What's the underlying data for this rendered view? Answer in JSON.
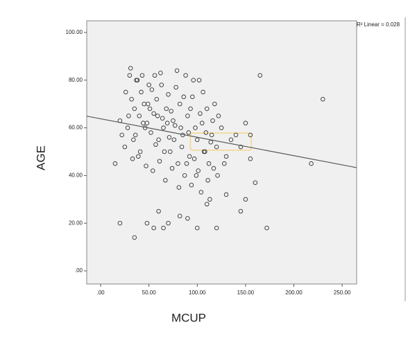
{
  "chart_data": {
    "type": "scatter",
    "x_label": "MCUP",
    "y_label": "AGE",
    "annotation": "R² Linear = 0.028",
    "xlim": [
      -14.4,
      265
    ],
    "ylim": [
      -5.5,
      104.9
    ],
    "xticks": [
      {
        "value": 0,
        "label": ".00"
      },
      {
        "value": 50,
        "label": "50.00"
      },
      {
        "value": 100,
        "label": "100.00"
      },
      {
        "value": 150,
        "label": "150.00"
      },
      {
        "value": 200,
        "label": "200.00"
      },
      {
        "value": 250,
        "label": "250.00"
      }
    ],
    "yticks": [
      {
        "value": 0,
        "label": ".00"
      },
      {
        "value": 20,
        "label": "20.00"
      },
      {
        "value": 40,
        "label": "40.00"
      },
      {
        "value": 60,
        "label": "60.00"
      },
      {
        "value": 80,
        "label": "80.00"
      },
      {
        "value": 100,
        "label": "100.00"
      }
    ],
    "color": "#333333",
    "background": "#f0f0f0",
    "x": [
      30,
      32,
      35,
      38,
      40,
      42,
      45,
      48,
      50,
      52,
      55,
      58,
      60,
      62,
      65,
      68,
      70,
      72,
      75,
      78,
      80,
      82,
      85,
      88,
      90,
      92,
      95,
      98,
      100,
      102,
      105,
      108,
      110,
      112,
      115,
      118,
      120,
      25,
      28,
      33,
      36,
      41,
      44,
      47,
      51,
      54,
      57,
      61,
      64,
      67,
      71,
      74,
      77,
      81,
      84,
      87,
      91,
      94,
      97,
      101,
      104,
      107,
      111,
      114,
      117,
      121,
      125,
      130,
      135,
      140,
      20,
      22,
      26,
      29,
      31,
      34,
      37,
      39,
      43,
      46,
      49,
      53,
      56,
      59,
      63,
      66,
      69,
      73,
      76,
      79,
      83,
      86,
      89,
      93,
      96,
      99,
      103,
      106,
      109,
      113,
      116,
      122,
      128,
      230,
      218,
      172,
      165,
      20,
      35,
      100,
      120,
      145,
      160,
      155,
      150,
      15,
      65,
      70,
      55,
      48,
      90,
      110,
      130,
      145,
      150,
      155,
      82,
      60
    ],
    "y": [
      82,
      72,
      68,
      80,
      65,
      75,
      70,
      62,
      78,
      58,
      66,
      72,
      55,
      83,
      60,
      68,
      74,
      50,
      63,
      77,
      45,
      70,
      57,
      82,
      65,
      48,
      73,
      60,
      55,
      80,
      62,
      50,
      68,
      45,
      57,
      70,
      52,
      52,
      60,
      47,
      57,
      50,
      62,
      44,
      68,
      42,
      53,
      46,
      64,
      38,
      56,
      43,
      61,
      35,
      52,
      40,
      58,
      36,
      47,
      42,
      33,
      50,
      38,
      54,
      43,
      40,
      60,
      48,
      55,
      57,
      63,
      57,
      75,
      65,
      85,
      55,
      80,
      48,
      82,
      60,
      70,
      76,
      82,
      65,
      78,
      50,
      62,
      67,
      55,
      84,
      60,
      73,
      45,
      68,
      80,
      40,
      66,
      75,
      58,
      30,
      63,
      65,
      45,
      72,
      45,
      18,
      82,
      20,
      14,
      18,
      18,
      25,
      37,
      47,
      30,
      45,
      18,
      20,
      18,
      20,
      22,
      28,
      32,
      52,
      62,
      57,
      23,
      25
    ],
    "fit_line": {
      "x": [
        -14.4,
        265
      ],
      "y": [
        64.9,
        43.3
      ],
      "color": "#555555"
    },
    "highlight": {
      "x": [
        93,
        156
      ],
      "y": [
        50.6,
        57.8
      ],
      "color": "#f5d68a"
    }
  }
}
